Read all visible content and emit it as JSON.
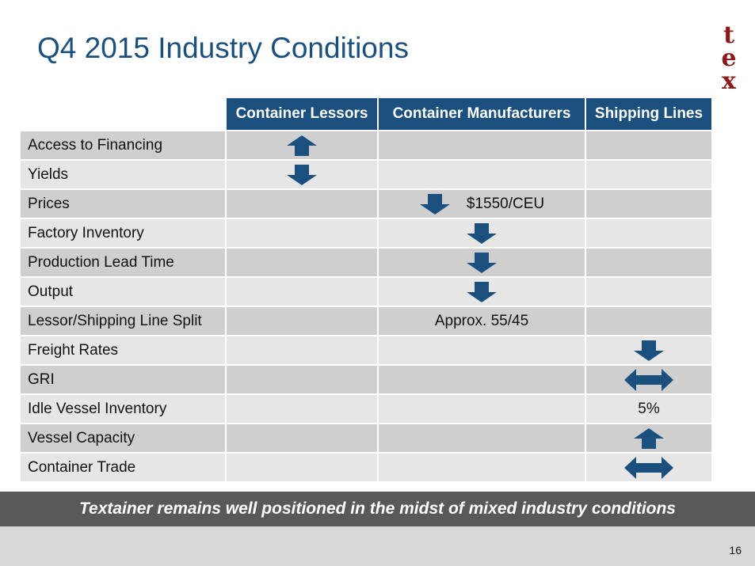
{
  "slide": {
    "title": "Q4 2015 Industry Conditions",
    "logo": [
      "t",
      "e",
      "x"
    ],
    "banner": "Textainer remains well positioned in the midst of mixed industry conditions",
    "page_number": "16"
  },
  "colors": {
    "header_bg": "#1b4f7e",
    "arrow": "#1b4f7e",
    "logo": "#8b1a1a",
    "row_light": "#e6e6e6",
    "row_dark": "#cfcfcf",
    "banner_bg": "#595959"
  },
  "table": {
    "columns": [
      "Container Lessors",
      "Container Manufacturers",
      "Shipping Lines"
    ],
    "rows": [
      {
        "label": "Access to Financing",
        "cells": [
          {
            "icon": "arrow-up-icon",
            "text": ""
          },
          {
            "icon": "",
            "text": ""
          },
          {
            "icon": "",
            "text": ""
          }
        ]
      },
      {
        "label": "Yields",
        "cells": [
          {
            "icon": "arrow-down-icon",
            "text": ""
          },
          {
            "icon": "",
            "text": ""
          },
          {
            "icon": "",
            "text": ""
          }
        ]
      },
      {
        "label": "Prices",
        "cells": [
          {
            "icon": "",
            "text": ""
          },
          {
            "icon": "arrow-down-icon",
            "text": "$1550/CEU"
          },
          {
            "icon": "",
            "text": ""
          }
        ]
      },
      {
        "label": "Factory Inventory",
        "cells": [
          {
            "icon": "",
            "text": ""
          },
          {
            "icon": "arrow-down-icon",
            "text": ""
          },
          {
            "icon": "",
            "text": ""
          }
        ]
      },
      {
        "label": "Production Lead Time",
        "cells": [
          {
            "icon": "",
            "text": ""
          },
          {
            "icon": "arrow-down-icon",
            "text": ""
          },
          {
            "icon": "",
            "text": ""
          }
        ]
      },
      {
        "label": "Output",
        "cells": [
          {
            "icon": "",
            "text": ""
          },
          {
            "icon": "arrow-down-icon",
            "text": ""
          },
          {
            "icon": "",
            "text": ""
          }
        ]
      },
      {
        "label": "Lessor/Shipping Line Split",
        "cells": [
          {
            "icon": "",
            "text": ""
          },
          {
            "icon": "",
            "text": "Approx. 55/45"
          },
          {
            "icon": "",
            "text": ""
          }
        ]
      },
      {
        "label": "Freight Rates",
        "cells": [
          {
            "icon": "",
            "text": ""
          },
          {
            "icon": "",
            "text": ""
          },
          {
            "icon": "arrow-down-icon",
            "text": ""
          }
        ]
      },
      {
        "label": "GRI",
        "cells": [
          {
            "icon": "",
            "text": ""
          },
          {
            "icon": "",
            "text": ""
          },
          {
            "icon": "arrow-left-right-icon",
            "text": ""
          }
        ]
      },
      {
        "label": "Idle Vessel Inventory",
        "cells": [
          {
            "icon": "",
            "text": ""
          },
          {
            "icon": "",
            "text": ""
          },
          {
            "icon": "",
            "text": "5%"
          }
        ]
      },
      {
        "label": "Vessel Capacity",
        "cells": [
          {
            "icon": "",
            "text": ""
          },
          {
            "icon": "",
            "text": ""
          },
          {
            "icon": "arrow-up-icon",
            "text": ""
          }
        ]
      },
      {
        "label": "Container Trade",
        "cells": [
          {
            "icon": "",
            "text": ""
          },
          {
            "icon": "",
            "text": ""
          },
          {
            "icon": "arrow-left-right-icon",
            "text": ""
          }
        ]
      }
    ]
  }
}
